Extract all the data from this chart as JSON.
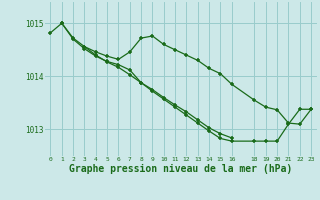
{
  "background_color": "#cce8e8",
  "line_color": "#1a6b1a",
  "grid_color": "#99cccc",
  "xlabel": "Graphe pression niveau de la mer (hPa)",
  "xlabel_fontsize": 7.0,
  "ylim": [
    1012.5,
    1015.4
  ],
  "xlim": [
    -0.5,
    23.5
  ],
  "yticks": [
    1013,
    1014,
    1015
  ],
  "xticks": [
    0,
    1,
    2,
    3,
    4,
    5,
    6,
    7,
    8,
    9,
    10,
    11,
    12,
    13,
    14,
    15,
    16,
    18,
    19,
    20,
    21,
    22,
    23
  ],
  "line1_x": [
    0,
    1,
    2,
    3,
    4,
    5,
    6,
    7,
    8,
    9,
    10,
    11,
    12,
    13,
    14,
    15,
    16,
    18,
    19,
    20,
    21,
    22,
    23
  ],
  "line1_y": [
    1014.82,
    1015.0,
    1014.72,
    1014.56,
    1014.46,
    1014.38,
    1014.32,
    1014.46,
    1014.72,
    1014.76,
    1014.6,
    1014.5,
    1014.4,
    1014.3,
    1014.15,
    1014.05,
    1013.85,
    1013.55,
    1013.42,
    1013.37,
    1013.12,
    1013.1,
    1013.38
  ],
  "line2_x": [
    1,
    2,
    3,
    4,
    5,
    6,
    7,
    8,
    9,
    10,
    11,
    12,
    13,
    14,
    15,
    16
  ],
  "line2_y": [
    1015.0,
    1014.7,
    1014.52,
    1014.38,
    1014.28,
    1014.22,
    1014.12,
    1013.88,
    1013.75,
    1013.6,
    1013.46,
    1013.33,
    1013.18,
    1013.03,
    1012.92,
    1012.84
  ],
  "line3_x": [
    3,
    4,
    5,
    6,
    7,
    8,
    9,
    10,
    11,
    12,
    13,
    14,
    15,
    16,
    18,
    19,
    20,
    21,
    22,
    23
  ],
  "line3_y": [
    1014.56,
    1014.4,
    1014.27,
    1014.17,
    1014.03,
    1013.88,
    1013.72,
    1013.57,
    1013.42,
    1013.27,
    1013.12,
    1012.97,
    1012.83,
    1012.78,
    1012.78,
    1012.78,
    1012.78,
    1013.1,
    1013.38,
    1013.38
  ]
}
